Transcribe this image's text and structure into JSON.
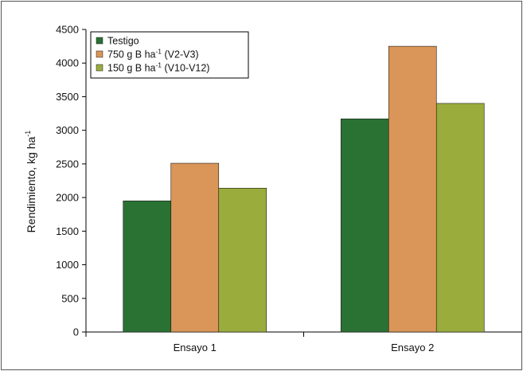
{
  "chart_data": {
    "type": "bar",
    "categories": [
      "Ensayo 1",
      "Ensayo 2"
    ],
    "series": [
      {
        "name": "Testigo",
        "name_sup": "",
        "name_suffix": "",
        "color": "#2a7233",
        "values": [
          1950,
          3170
        ]
      },
      {
        "name": "750 g B ha",
        "name_sup": "-1",
        "name_suffix": " (V2-V3)",
        "color": "#d99658",
        "values": [
          2510,
          4250
        ]
      },
      {
        "name": "150 g B ha",
        "name_sup": "-1",
        "name_suffix": " (V10-V12)",
        "color": "#9aac3c",
        "values": [
          2140,
          3400
        ]
      }
    ],
    "ylabel": "Rendimiento, kg ha",
    "ylabel_sup": "-1",
    "xlabel": "",
    "ylim": [
      0,
      4500
    ],
    "yticks": [
      0,
      500,
      1000,
      1500,
      2000,
      2500,
      3000,
      3500,
      4000,
      4500
    ],
    "legend_position": "top-left",
    "grid": false
  }
}
